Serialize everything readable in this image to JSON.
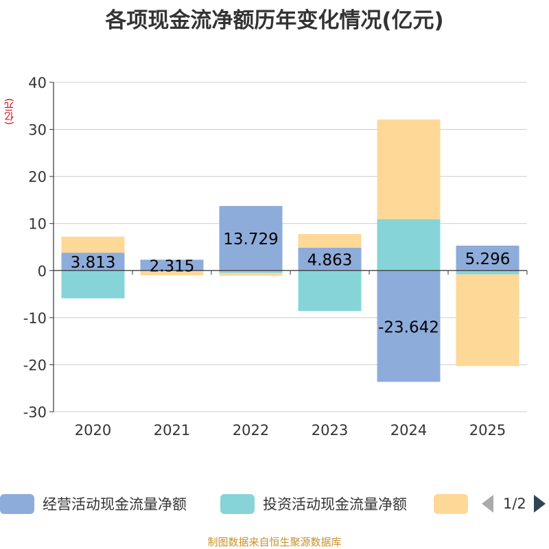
{
  "title": "各项现金流净额历年变化情况(亿元)",
  "unit_label": "(亿元)",
  "source": "制图数据来自恒生聚源数据库",
  "chart_data": {
    "type": "bar",
    "stacked": true,
    "title": "各项现金流净额历年变化情况(亿元)",
    "ylabel": "(亿元)",
    "ylim": [
      -30,
      40
    ],
    "yticks": [
      -30,
      -20,
      -10,
      0,
      10,
      20,
      30,
      40
    ],
    "categories": [
      "2020",
      "2021",
      "2022",
      "2023",
      "2024",
      "2025"
    ],
    "series": [
      {
        "name": "经营活动现金流量净额",
        "color": "#8eacda",
        "values": [
          3.813,
          2.315,
          13.729,
          4.863,
          -23.642,
          5.296
        ]
      },
      {
        "name": "投资活动现金流量净额",
        "color": "#86d4d7",
        "values": [
          -5.9,
          0,
          -0.5,
          -8.6,
          10.9,
          -0.8
        ]
      },
      {
        "name": "",
        "color": "#fed897",
        "values": [
          3.4,
          -1.0,
          -0.6,
          2.9,
          21.2,
          -19.5
        ]
      }
    ],
    "data_labels": [
      "3.813",
      "2.315",
      "13.729",
      "4.863",
      "-23.642",
      "5.296"
    ],
    "legend_position": "bottom"
  },
  "legend": {
    "items": [
      {
        "label": "经营活动现金流量净额",
        "color": "#8eacda"
      },
      {
        "label": "投资活动现金流量净额",
        "color": "#86d4d7"
      },
      {
        "label": "",
        "color": "#fed897"
      }
    ],
    "page": "1/2",
    "prev_icon": "triangle-left-icon",
    "next_icon": "triangle-right-icon"
  }
}
